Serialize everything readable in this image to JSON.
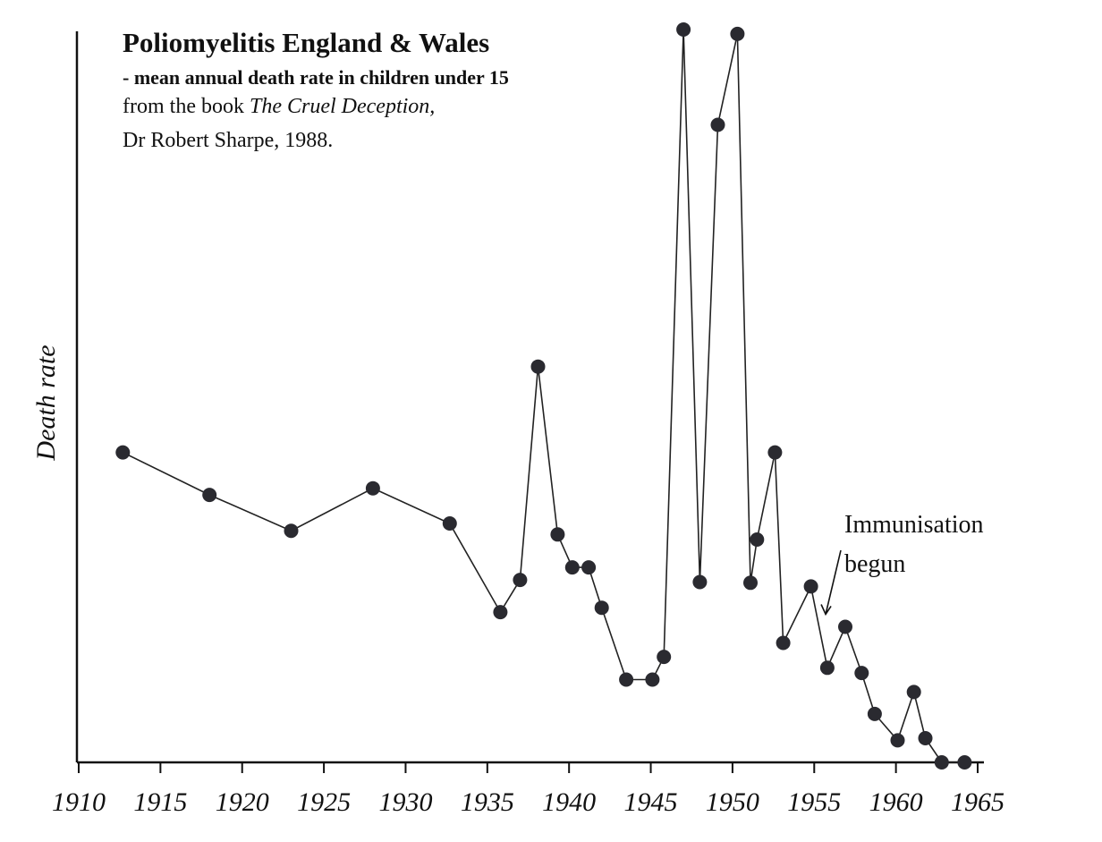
{
  "chart_data": {
    "type": "line",
    "title": "Poliomyelitis England & Wales",
    "subtitle": "- mean annual death rate in children under 15",
    "source_prefix": "from the book ",
    "source_title": "The Cruel Deception,",
    "source_author": "Dr Robert Sharpe, 1988.",
    "xlabel": "",
    "ylabel": "Death rate",
    "xlim": [
      1910,
      1965
    ],
    "ylim": [
      0,
      100
    ],
    "x_ticks": [
      1910,
      1915,
      1920,
      1925,
      1930,
      1935,
      1940,
      1945,
      1950,
      1955,
      1960,
      1965
    ],
    "x_tick_labels": [
      "1910",
      "1915",
      "1920",
      "1925",
      "1930",
      "1935",
      "1940",
      "1945",
      "1950",
      "1955",
      "1960",
      "1965"
    ],
    "grid": false,
    "series": [
      {
        "marker": "circle",
        "color": "#2a2a30",
        "x": [
          1912.7,
          1918.0,
          1923.0,
          1928.0,
          1932.7,
          1935.8,
          1937.0,
          1938.1,
          1939.3,
          1940.2,
          1941.2,
          1942.0,
          1943.5,
          1945.1,
          1945.8,
          1947.0,
          1948.0,
          1949.1,
          1950.3,
          1951.1,
          1951.5,
          1952.6,
          1953.1,
          1954.8,
          1955.8,
          1956.9,
          1957.9,
          1958.7,
          1960.1,
          1961.1,
          1961.8,
          1962.8,
          1964.2
        ],
        "y": [
          42.3,
          36.5,
          31.6,
          37.4,
          32.6,
          20.5,
          24.9,
          54.0,
          31.1,
          26.6,
          26.6,
          21.1,
          11.3,
          11.3,
          14.4,
          100.0,
          24.6,
          87.0,
          99.4,
          24.5,
          30.4,
          42.3,
          16.3,
          24.0,
          12.9,
          18.5,
          12.2,
          6.6,
          3.0,
          9.6,
          3.3,
          0.0,
          0.0
        ]
      }
    ],
    "annotations": [
      {
        "text_line1": "Immunisation",
        "text_line2": "begun",
        "x": 1955.7,
        "y": 18.5
      }
    ]
  }
}
